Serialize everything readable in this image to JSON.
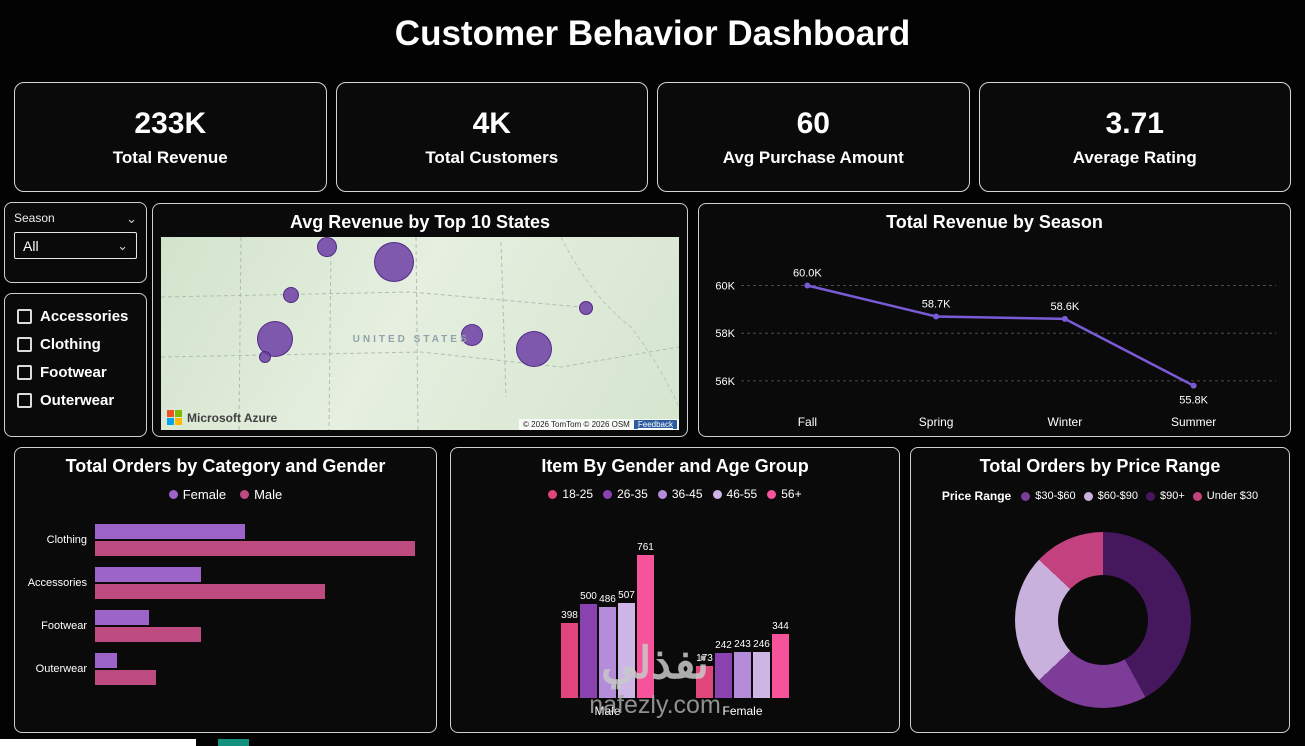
{
  "title": "Customer Behavior Dashboard",
  "kpis": [
    {
      "value": "233K",
      "label": "Total Revenue"
    },
    {
      "value": "4K",
      "label": "Total Customers"
    },
    {
      "value": "60",
      "label": "Avg Purchase Amount"
    },
    {
      "value": "3.71",
      "label": "Average Rating"
    }
  ],
  "season_slicer": {
    "label": "Season",
    "selected": "All"
  },
  "category_filter": {
    "items": [
      "Accessories",
      "Clothing",
      "Footwear",
      "Outerwear"
    ]
  },
  "map": {
    "title": "Avg Revenue by Top 10 States",
    "region_label": "UNITED STATES",
    "brand": "Microsoft Azure",
    "attribution": "© 2026 TomTom © 2026 OSM",
    "feedback": "Feedback",
    "bubble_color": "#6C3EA6",
    "bubbles": [
      {
        "x": 0.32,
        "y": 0.05,
        "r": 10
      },
      {
        "x": 0.45,
        "y": 0.13,
        "r": 20
      },
      {
        "x": 0.25,
        "y": 0.3,
        "r": 8
      },
      {
        "x": 0.22,
        "y": 0.53,
        "r": 18
      },
      {
        "x": 0.2,
        "y": 0.62,
        "r": 6
      },
      {
        "x": 0.6,
        "y": 0.51,
        "r": 11
      },
      {
        "x": 0.72,
        "y": 0.58,
        "r": 18
      },
      {
        "x": 0.82,
        "y": 0.37,
        "r": 7
      }
    ]
  },
  "chart_data": [
    {
      "id": "total-revenue-by-season",
      "type": "line",
      "title": "Total Revenue by Season",
      "categories": [
        "Fall",
        "Spring",
        "Winter",
        "Summer"
      ],
      "values": [
        60.0,
        58.7,
        58.6,
        55.8
      ],
      "value_labels": [
        "60.0K",
        "58.7K",
        "58.6K",
        "55.8K"
      ],
      "yticks": [
        60,
        58,
        56
      ],
      "ytick_labels": [
        "60K",
        "58K",
        "56K"
      ],
      "ylim": [
        55.2,
        60.9
      ],
      "line_color": "#7A5BD6",
      "grid": true,
      "legend": "none"
    },
    {
      "id": "total-orders-by-category-and-gender",
      "type": "bar-horizontal",
      "title": "Total Orders by Category and Gender",
      "categories": [
        "Clothing",
        "Accessories",
        "Footwear",
        "Outerwear"
      ],
      "series": [
        {
          "name": "Female",
          "color": "#9C63C9",
          "values": [
            470,
            330,
            170,
            70
          ]
        },
        {
          "name": "Male",
          "color": "#BD4B7F",
          "values": [
            1000,
            720,
            330,
            190
          ]
        }
      ],
      "xmax": 1000,
      "legend_position": "top"
    },
    {
      "id": "item-by-gender-and-age-group",
      "type": "bar",
      "title": "Item By Gender and Age Group",
      "categories": [
        "Male",
        "Female"
      ],
      "series": [
        {
          "name": "18-25",
          "color": "#E0457B",
          "values": [
            398,
            173
          ]
        },
        {
          "name": "26-35",
          "color": "#8A42B0",
          "values": [
            500,
            242
          ]
        },
        {
          "name": "36-45",
          "color": "#B48CD9",
          "values": [
            486,
            243
          ]
        },
        {
          "name": "46-55",
          "color": "#CDB5E6",
          "values": [
            507,
            246
          ]
        },
        {
          "name": "56+",
          "color": "#F6539B",
          "values": [
            761,
            344
          ]
        }
      ],
      "ylim": [
        0,
        800
      ],
      "legend_position": "top"
    },
    {
      "id": "total-orders-by-price-range",
      "type": "pie",
      "title": "Total Orders by Price Range",
      "legend_title": "Price Range",
      "donut": true,
      "slices": [
        {
          "label": "$30-$60",
          "color": "#7D3C98",
          "pct": 21
        },
        {
          "label": "$60-$90",
          "color": "#C9B1DE",
          "pct": 24
        },
        {
          "label": "$90+",
          "color": "#45185E",
          "pct": 42
        },
        {
          "label": "Under $30",
          "color": "#C2417E",
          "pct": 13
        }
      ],
      "draw_order": [
        "$90+",
        "$30-$60",
        "$60-$90",
        "Under $30"
      ]
    }
  ],
  "watermark": {
    "arabic": "نفذلي",
    "site": "nafezly.com"
  }
}
